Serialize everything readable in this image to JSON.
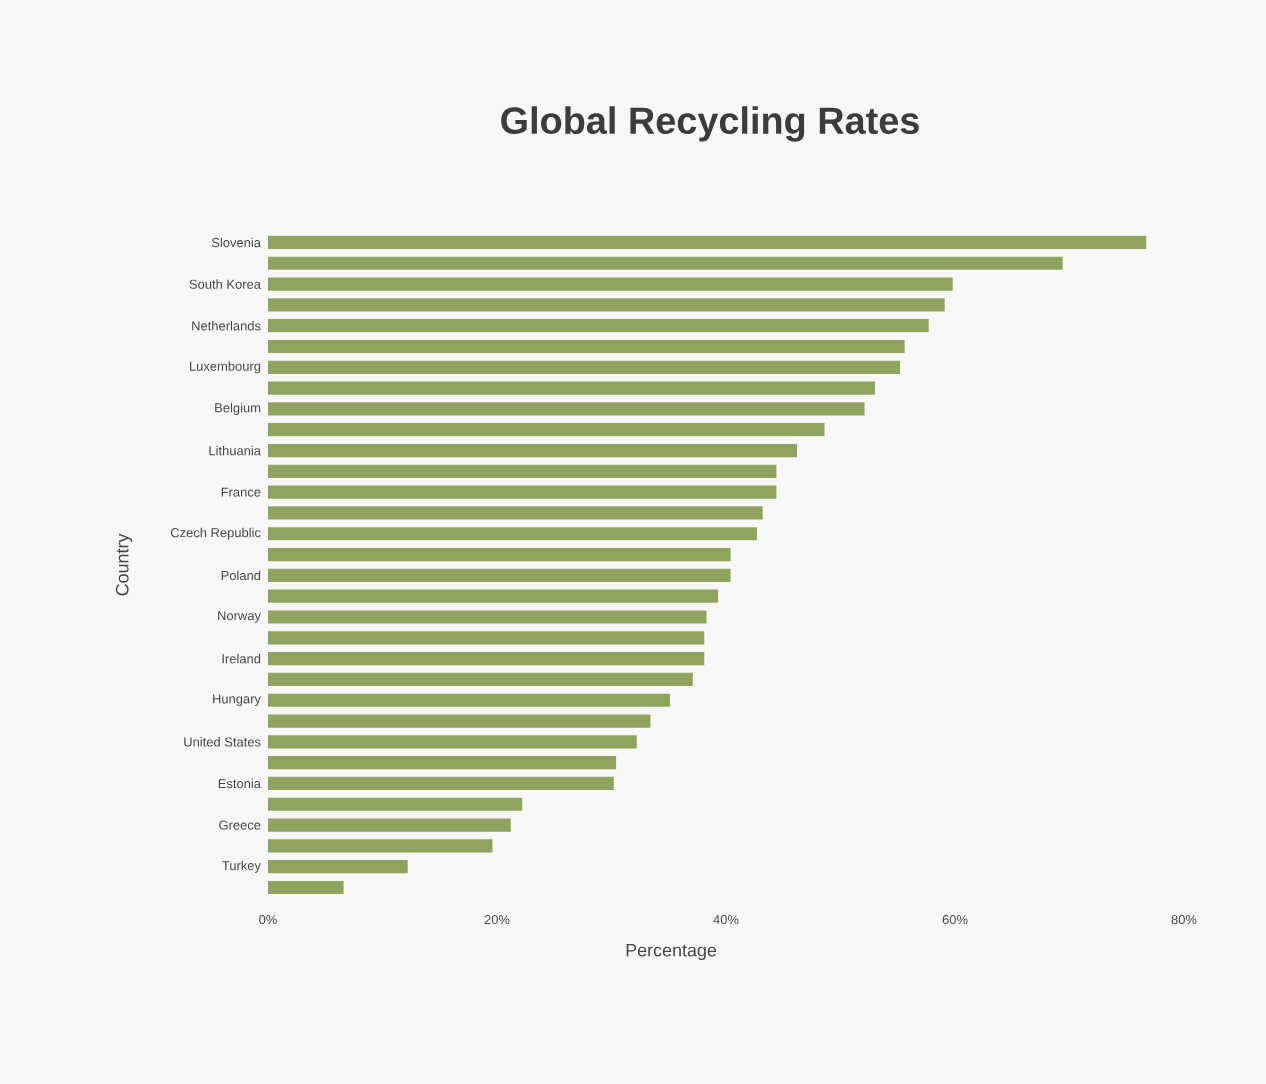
{
  "chart_data": {
    "type": "bar",
    "orientation": "horizontal",
    "title": "Global Recycling Rates",
    "xlabel": "Percentage",
    "ylabel": "Country",
    "categories": [
      "Slovenia",
      null,
      "South Korea",
      null,
      "Netherlands",
      null,
      "Luxembourg",
      null,
      "Belgium",
      null,
      "Lithuania",
      null,
      "France",
      null,
      "Czech Republic",
      null,
      "Poland",
      null,
      "Norway",
      null,
      "Ireland",
      null,
      "Hungary",
      null,
      "United States",
      null,
      "Estonia",
      null,
      "Greece",
      null,
      "Turkey",
      null
    ],
    "values": [
      76.7,
      69.4,
      59.8,
      59.1,
      57.7,
      55.6,
      55.2,
      53.0,
      52.1,
      48.6,
      46.2,
      44.4,
      44.4,
      43.2,
      42.7,
      40.4,
      40.4,
      39.3,
      38.3,
      38.1,
      38.1,
      37.1,
      35.1,
      33.4,
      32.2,
      30.4,
      30.2,
      22.2,
      21.2,
      19.6,
      12.2,
      6.6
    ],
    "color": "#8fa35f",
    "xlim": [
      0,
      80
    ],
    "xticks": [
      {
        "value": 0,
        "label": "0%"
      },
      {
        "value": 20,
        "label": "20%"
      },
      {
        "value": 40,
        "label": "40%"
      },
      {
        "value": 60,
        "label": "60%"
      },
      {
        "value": 80,
        "label": "80%"
      }
    ]
  }
}
